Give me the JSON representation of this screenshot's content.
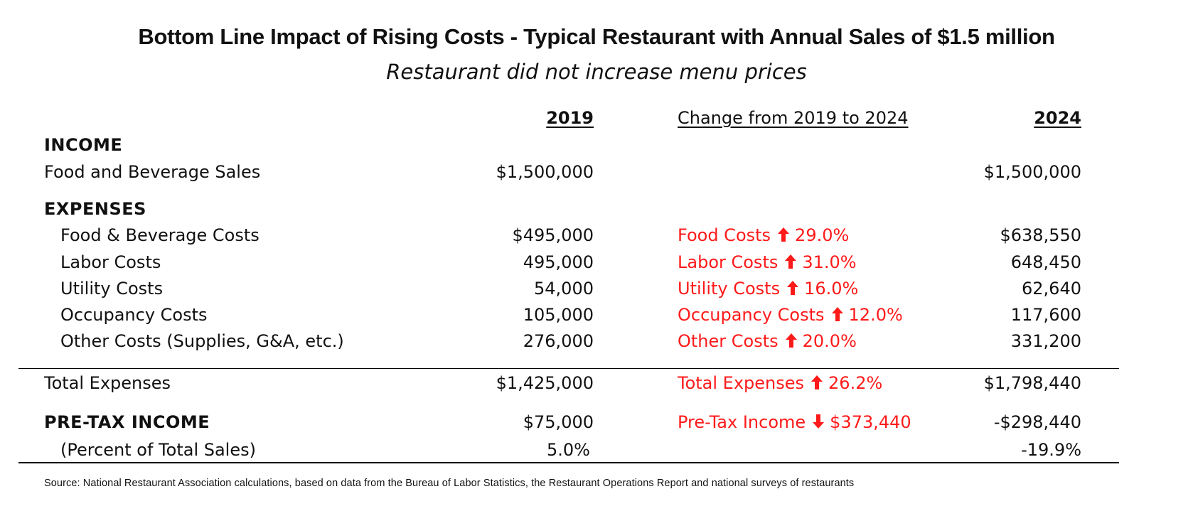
{
  "title": "Bottom Line Impact of Rising Costs - Typical Restaurant with Annual Sales of $1.5 million",
  "subtitle": "Restaurant did not increase menu prices",
  "headers": {
    "col2019": "2019",
    "change": "Change from 2019 to 2024",
    "col2024": "2024"
  },
  "income": {
    "section_label": "INCOME",
    "food_beverage_sales": {
      "label": "Food and Beverage Sales",
      "v2019": "$1,500,000",
      "v2024": "$1,500,000"
    }
  },
  "expenses": {
    "section_label": "EXPENSES",
    "rows": [
      {
        "label": "Food & Beverage Costs",
        "v2019": "$495,000",
        "change_label": "Food Costs",
        "direction": "up",
        "change_value": "29.0%",
        "v2024": "$638,550"
      },
      {
        "label": "Labor Costs",
        "v2019": "495,000",
        "change_label": "Labor Costs",
        "direction": "up",
        "change_value": "31.0%",
        "v2024": "648,450"
      },
      {
        "label": "Utility Costs",
        "v2019": "54,000",
        "change_label": "Utility Costs",
        "direction": "up",
        "change_value": "16.0%",
        "v2024": "62,640"
      },
      {
        "label": "Occupancy Costs",
        "v2019": "105,000",
        "change_label": "Occupancy Costs",
        "direction": "up",
        "change_value": "12.0%",
        "v2024": "117,600"
      },
      {
        "label": "Other Costs (Supplies, G&A, etc.)",
        "v2019": "276,000",
        "change_label": "Other Costs",
        "direction": "up",
        "change_value": "20.0%",
        "v2024": "331,200"
      }
    ],
    "total": {
      "label": "Total Expenses",
      "v2019": "$1,425,000",
      "change_label": "Total Expenses",
      "direction": "up",
      "change_value": "26.2%",
      "v2024": "$1,798,440"
    }
  },
  "pretax": {
    "label": "PRE-TAX INCOME",
    "v2019": "$75,000",
    "change_label": "Pre-Tax Income",
    "direction": "down",
    "change_value": "$373,440",
    "v2024": "-$298,440"
  },
  "percent": {
    "label": "(Percent of Total Sales)",
    "v2019": "5.0%",
    "v2024": "-19.9%"
  },
  "source": "Source: National Restaurant Association calculations, based on data from the Bureau of Labor Statistics, the Restaurant Operations Report and national surveys of restaurants",
  "colors": {
    "change_text": "#ff1a1a",
    "text": "#111111",
    "rule": "#000000"
  }
}
